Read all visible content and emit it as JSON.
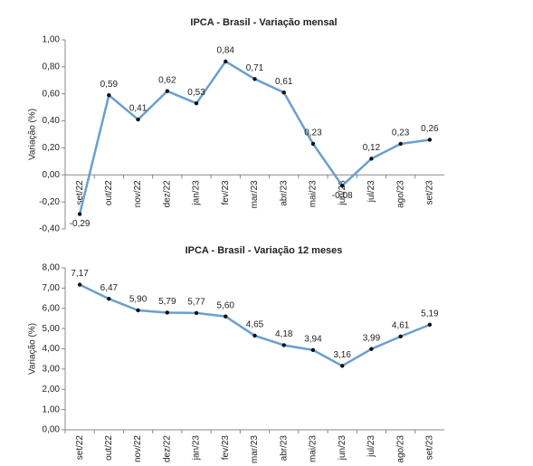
{
  "chart_data": [
    {
      "type": "line",
      "title": "IPCA - Brasil - Variação mensal",
      "y_label": "Variação (%)",
      "categories": [
        "set/22",
        "out/22",
        "nov/22",
        "dez/22",
        "jan/23",
        "fev/23",
        "mar/23",
        "abr/23",
        "mai/23",
        "jun/23",
        "jul/23",
        "ago/23",
        "set/23"
      ],
      "series": [
        {
          "name": "IPCA",
          "color": "#6a9fcf",
          "values": [
            -0.29,
            0.59,
            0.41,
            0.62,
            0.53,
            0.84,
            0.71,
            0.61,
            0.23,
            -0.08,
            0.12,
            0.23,
            0.26
          ],
          "value_labels": [
            "-0,29",
            "0,59",
            "0,41",
            "0,62",
            "0,53",
            "0,84",
            "0,71",
            "0,61",
            "0,23",
            "-0,08",
            "0,12",
            "0,23",
            "0,26"
          ]
        }
      ],
      "ylim": [
        -0.4,
        1.0
      ],
      "yticks": [
        {
          "value": -0.4,
          "label": "-0,40"
        },
        {
          "value": -0.2,
          "label": "-0,20"
        },
        {
          "value": 0,
          "label": "0,00"
        },
        {
          "value": 0.2,
          "label": "0,20"
        },
        {
          "value": 0.4,
          "label": "0,40"
        },
        {
          "value": 0.6,
          "label": "0,60"
        },
        {
          "value": 0.8,
          "label": "0,80"
        },
        {
          "value": 1.0,
          "label": "1,00"
        }
      ]
    },
    {
      "type": "line",
      "title": "IPCA - Brasil - Variação 12 meses",
      "y_label": "Variação (%)",
      "categories": [
        "set/22",
        "out/22",
        "nov/22",
        "dez/22",
        "jan/23",
        "fev/23",
        "mar/23",
        "abr/23",
        "mai/23",
        "jun/23",
        "jul/23",
        "ago/23",
        "set/23"
      ],
      "series": [
        {
          "name": "IPCA 12 meses",
          "color": "#6a9fcf",
          "values": [
            7.17,
            6.47,
            5.9,
            5.79,
            5.77,
            5.6,
            4.65,
            4.18,
            3.94,
            3.16,
            3.99,
            4.61,
            5.19
          ],
          "value_labels": [
            "7,17",
            "6,47",
            "5,90",
            "5,79",
            "5,77",
            "5,60",
            "4,65",
            "4,18",
            "3,94",
            "3,16",
            "3,99",
            "4,61",
            "5,19"
          ]
        }
      ],
      "ylim": [
        0,
        8
      ],
      "yticks": [
        {
          "value": 0,
          "label": "0,00"
        },
        {
          "value": 1,
          "label": "1,00"
        },
        {
          "value": 2,
          "label": "2,00"
        },
        {
          "value": 3,
          "label": "3,00"
        },
        {
          "value": 4,
          "label": "4,00"
        },
        {
          "value": 5,
          "label": "5,00"
        },
        {
          "value": 6,
          "label": "6,00"
        },
        {
          "value": 7,
          "label": "7,00"
        },
        {
          "value": 8,
          "label": "8,00"
        }
      ]
    }
  ]
}
